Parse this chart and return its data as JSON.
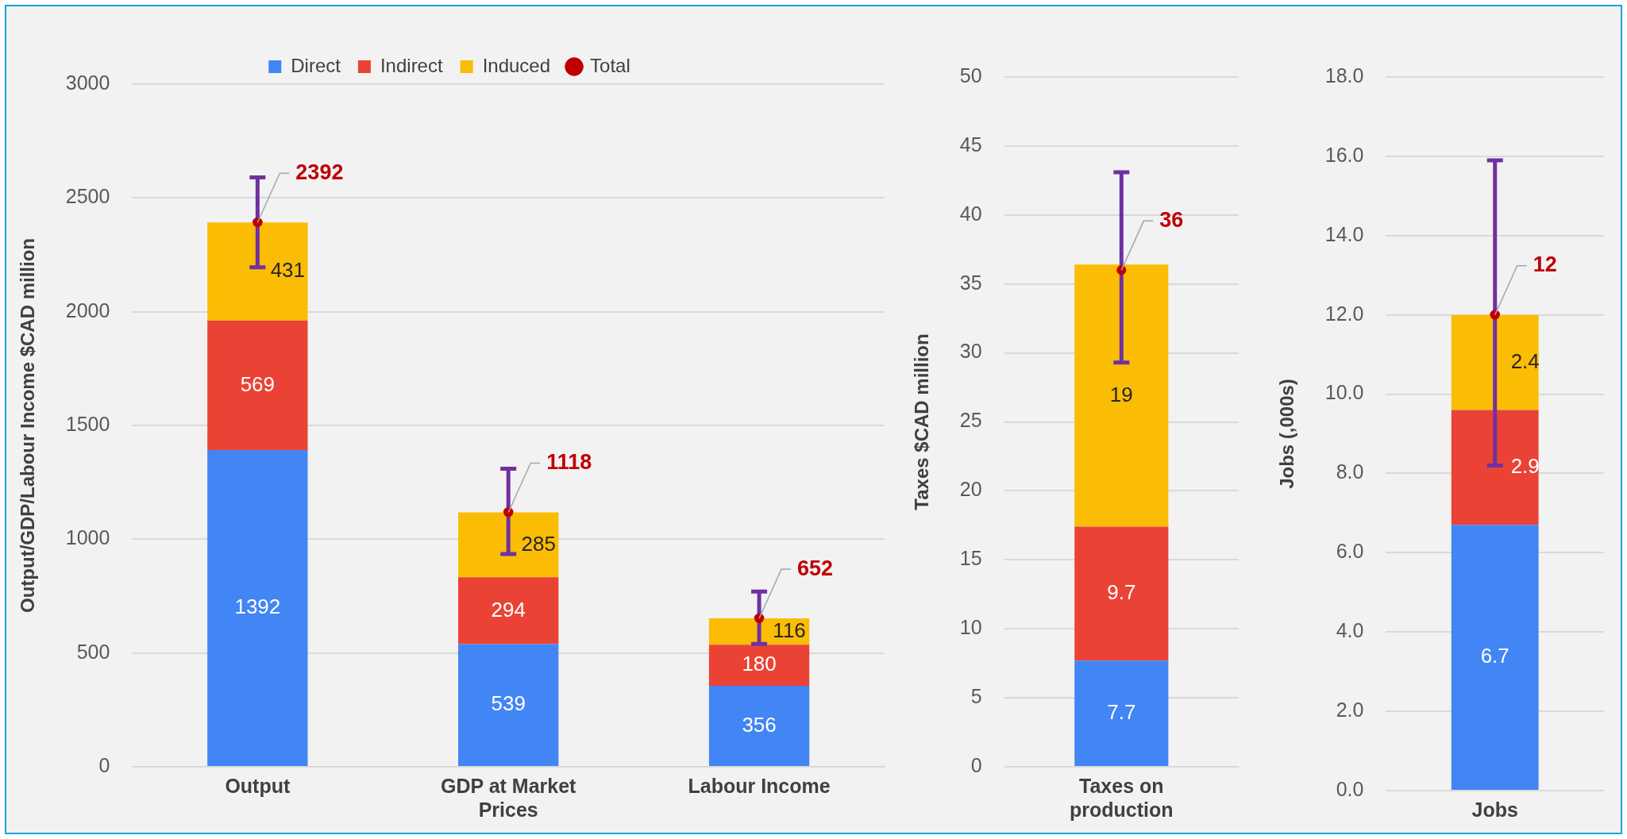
{
  "chart_data": [
    {
      "type": "bar",
      "stacked": true,
      "categories": [
        "Output",
        "GDP at Market Prices",
        "Labour Income"
      ],
      "ylabel": "Output/GDP/Labour Income $CAD million",
      "ylim": [
        0,
        3000
      ],
      "yticks": [
        0,
        500,
        1000,
        1500,
        2000,
        2500,
        3000
      ],
      "grid": "y",
      "legend": "top",
      "data_labels": true,
      "series": [
        {
          "name": "Direct",
          "color": "#4285f4",
          "values": [
            1392,
            539,
            356
          ]
        },
        {
          "name": "Indirect",
          "color": "#ea4335",
          "values": [
            569,
            294,
            180
          ]
        },
        {
          "name": "Induced",
          "color": "#fbbc04",
          "values": [
            431,
            285,
            116
          ]
        },
        {
          "name": "Total",
          "type": "scatter",
          "marker": "circle",
          "color": "#c00000",
          "x": [
            "Output",
            "GDP at Market Prices",
            "Labour Income"
          ],
          "values": [
            2392,
            1118,
            652
          ],
          "errors": [
            [
              2195,
              2590
            ],
            [
              935,
              1310
            ],
            [
              540,
              770
            ]
          ]
        }
      ]
    },
    {
      "type": "bar",
      "stacked": true,
      "categories": [
        "Taxes on production"
      ],
      "ylabel": "Taxes $CAD million",
      "ylim": [
        0,
        50
      ],
      "yticks": [
        0,
        5,
        10,
        15,
        20,
        25,
        30,
        35,
        40,
        45,
        50
      ],
      "grid": "y",
      "legend": false,
      "data_labels": true,
      "series": [
        {
          "color": "#4285f4",
          "values": [
            7.7
          ]
        },
        {
          "color": "#ea4335",
          "values": [
            9.7
          ]
        },
        {
          "color": "#fbbc04",
          "values": [
            19
          ]
        },
        {
          "type": "scatter",
          "marker": "circle",
          "color": "#c00000",
          "x": [
            "Taxes on production"
          ],
          "values": [
            36
          ],
          "errors": [
            [
              29.3,
              43.1
            ]
          ]
        }
      ]
    },
    {
      "type": "bar",
      "stacked": true,
      "categories": [
        "Jobs"
      ],
      "ylabel": "Jobs (,000s)",
      "ylim": [
        0,
        18
      ],
      "yticks": [
        {
          "value": 0,
          "label": "0.0"
        },
        {
          "value": 2,
          "label": "2.0"
        },
        {
          "value": 4,
          "label": "4.0"
        },
        {
          "value": 6,
          "label": "6.0"
        },
        {
          "value": 8,
          "label": "8.0"
        },
        {
          "value": 10,
          "label": "10.0"
        },
        {
          "value": 12,
          "label": "12.0"
        },
        {
          "value": 14,
          "label": "14.0"
        },
        {
          "value": 16,
          "label": "16.0"
        },
        {
          "value": 18,
          "label": "18.0"
        }
      ],
      "grid": "y",
      "legend": false,
      "data_labels": true,
      "series": [
        {
          "color": "#4285f4",
          "values": [
            6.7
          ]
        },
        {
          "color": "#ea4335",
          "values": [
            2.9
          ]
        },
        {
          "color": "#fbbc04",
          "values": [
            2.4
          ]
        },
        {
          "type": "scatter",
          "marker": "circle",
          "color": "#c00000",
          "x": [
            "Jobs"
          ],
          "values": [
            12
          ],
          "errors": [
            [
              8.2,
              15.9
            ]
          ]
        }
      ]
    }
  ]
}
